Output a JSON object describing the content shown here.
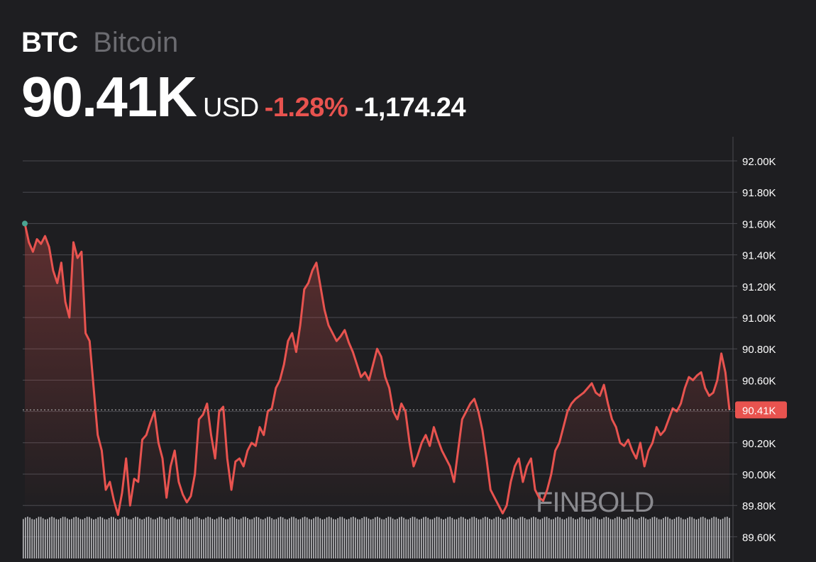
{
  "header": {
    "ticker": "BTC",
    "name": "Bitcoin",
    "price": "90.41K",
    "currency": "USD",
    "change_pct": "-1.28%",
    "change_abs": "-1,174.24"
  },
  "watermark": "FINBOLD",
  "colors": {
    "background": "#1e1e21",
    "line": "#e8534f",
    "negative": "#e8534f",
    "start_dot": "#4aa391",
    "grid": "#4a4a50",
    "axis_text": "#ffffff",
    "name_text": "#6b6b70"
  },
  "chart_data": {
    "type": "line",
    "title": "",
    "xlabel": "",
    "ylabel": "",
    "ylim": [
      89.5,
      92.1
    ],
    "y_ticks": [
      "92.00K",
      "91.80K",
      "91.60K",
      "91.40K",
      "91.20K",
      "91.00K",
      "90.80K",
      "90.60K",
      "90.40K",
      "90.20K",
      "90.00K",
      "89.80K",
      "89.60K"
    ],
    "y_tick_values": [
      92.0,
      91.8,
      91.6,
      91.4,
      91.2,
      91.0,
      90.8,
      90.6,
      90.4,
      90.2,
      90.0,
      89.8,
      89.6
    ],
    "last_price_label": "90.41K",
    "last_price_value": 90.41,
    "unit": "K USD",
    "grid": true,
    "series": [
      {
        "values": [
          91.6,
          91.48,
          91.42,
          91.5,
          91.47,
          91.52,
          91.45,
          91.3,
          91.22,
          91.35,
          91.1,
          91.0,
          91.48,
          91.38,
          91.42,
          90.9,
          90.85,
          90.55,
          90.25,
          90.15,
          89.9,
          89.95,
          89.83,
          89.74,
          89.88,
          90.1,
          89.8,
          89.97,
          89.95,
          90.22,
          90.25,
          90.33,
          90.4,
          90.2,
          90.1,
          89.85,
          90.05,
          90.15,
          89.95,
          89.87,
          89.82,
          89.86,
          90.0,
          90.35,
          90.38,
          90.45,
          90.25,
          90.1,
          90.4,
          90.43,
          90.1,
          89.9,
          90.08,
          90.1,
          90.05,
          90.15,
          90.2,
          90.18,
          90.3,
          90.25,
          90.4,
          90.42,
          90.55,
          90.6,
          90.7,
          90.85,
          90.9,
          90.78,
          90.95,
          91.18,
          91.22,
          91.3,
          91.35,
          91.2,
          91.05,
          90.95,
          90.9,
          90.85,
          90.88,
          90.92,
          90.84,
          90.78,
          90.7,
          90.62,
          90.65,
          90.6,
          90.7,
          90.8,
          90.75,
          90.62,
          90.55,
          90.4,
          90.35,
          90.45,
          90.4,
          90.2,
          90.05,
          90.12,
          90.2,
          90.25,
          90.18,
          90.3,
          90.22,
          90.15,
          90.1,
          90.05,
          89.95,
          90.15,
          90.35,
          90.4,
          90.45,
          90.48,
          90.4,
          90.28,
          90.1,
          89.9,
          89.85,
          89.8,
          89.75,
          89.8,
          89.95,
          90.05,
          90.1,
          89.95,
          90.05,
          90.1,
          89.9,
          89.85,
          89.83,
          89.9,
          90.0,
          90.15,
          90.2,
          90.3,
          90.4,
          90.45,
          90.48,
          90.5,
          90.52,
          90.55,
          90.58,
          90.52,
          90.5,
          90.57,
          90.45,
          90.35,
          90.3,
          90.2,
          90.18,
          90.22,
          90.15,
          90.1,
          90.2,
          90.05,
          90.15,
          90.2,
          90.3,
          90.25,
          90.28,
          90.35,
          90.42,
          90.4,
          90.45,
          90.55,
          90.62,
          90.6,
          90.63,
          90.65,
          90.55,
          90.5,
          90.52,
          90.6,
          90.77,
          90.65,
          90.41
        ]
      }
    ]
  }
}
